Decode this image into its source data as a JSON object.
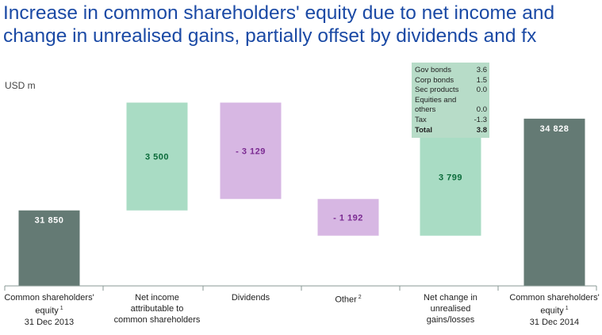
{
  "title": "Increase in common shareholders' equity due to net income and change in unrealised gains, partially offset by dividends and fx",
  "unit": "USD m",
  "colors": {
    "total_bar": "#647a74",
    "increase_bar": "#a9dcc4",
    "decrease_bar": "#d7b7e3",
    "total_label": "#ffffff",
    "increase_label": "#0b6b3a",
    "decrease_label": "#7a2a91",
    "axis": "#8a9a95"
  },
  "chart_data": {
    "type": "bar",
    "subtype": "waterfall",
    "title": "Increase in common shareholders' equity due to net income and change in unrealised gains, partially offset by dividends and fx",
    "ylabel": "USD m",
    "categories": [
      "Common shareholders' equity 1 31 Dec 2013",
      "Net income attributable to common shareholders",
      "Dividends",
      "Other 2",
      "Net change in unrealised gains/losses",
      "Common shareholders' equity 1 31 Dec 2014"
    ],
    "values": [
      31850,
      3500,
      -3129,
      -1192,
      3799,
      34828
    ],
    "labels": [
      "31 850",
      "3 500",
      "- 3 129",
      "- 1 192",
      "3 799",
      "34 828"
    ],
    "kinds": [
      "total",
      "increase",
      "decrease",
      "decrease",
      "increase",
      "total"
    ],
    "breakdown": {
      "items": [
        {
          "label": "Gov bonds",
          "value": "3.6"
        },
        {
          "label": "Corp bonds",
          "value": "1.5"
        },
        {
          "label": "Sec products",
          "value": "0.0"
        },
        {
          "label": "Equities and",
          "value": ""
        },
        {
          "label": "others",
          "value": "0.0"
        },
        {
          "label": "Tax",
          "value": "-1.3"
        }
      ],
      "total": {
        "label": "Total",
        "value": "3.8"
      }
    }
  },
  "category_labels": [
    {
      "lines": [
        "Common shareholders'",
        "equity",
        "31 Dec 2013"
      ],
      "sup": "1"
    },
    {
      "lines": [
        "Net income",
        "attributable to",
        "common shareholders"
      ],
      "sup": ""
    },
    {
      "lines": [
        "Dividends"
      ],
      "sup": ""
    },
    {
      "lines": [
        "Other"
      ],
      "sup": "2"
    },
    {
      "lines": [
        "Net change in",
        "unrealised",
        "gains/losses"
      ],
      "sup": ""
    },
    {
      "lines": [
        "Common shareholders'",
        "equity",
        "31 Dec 2014"
      ],
      "sup": "1"
    }
  ]
}
